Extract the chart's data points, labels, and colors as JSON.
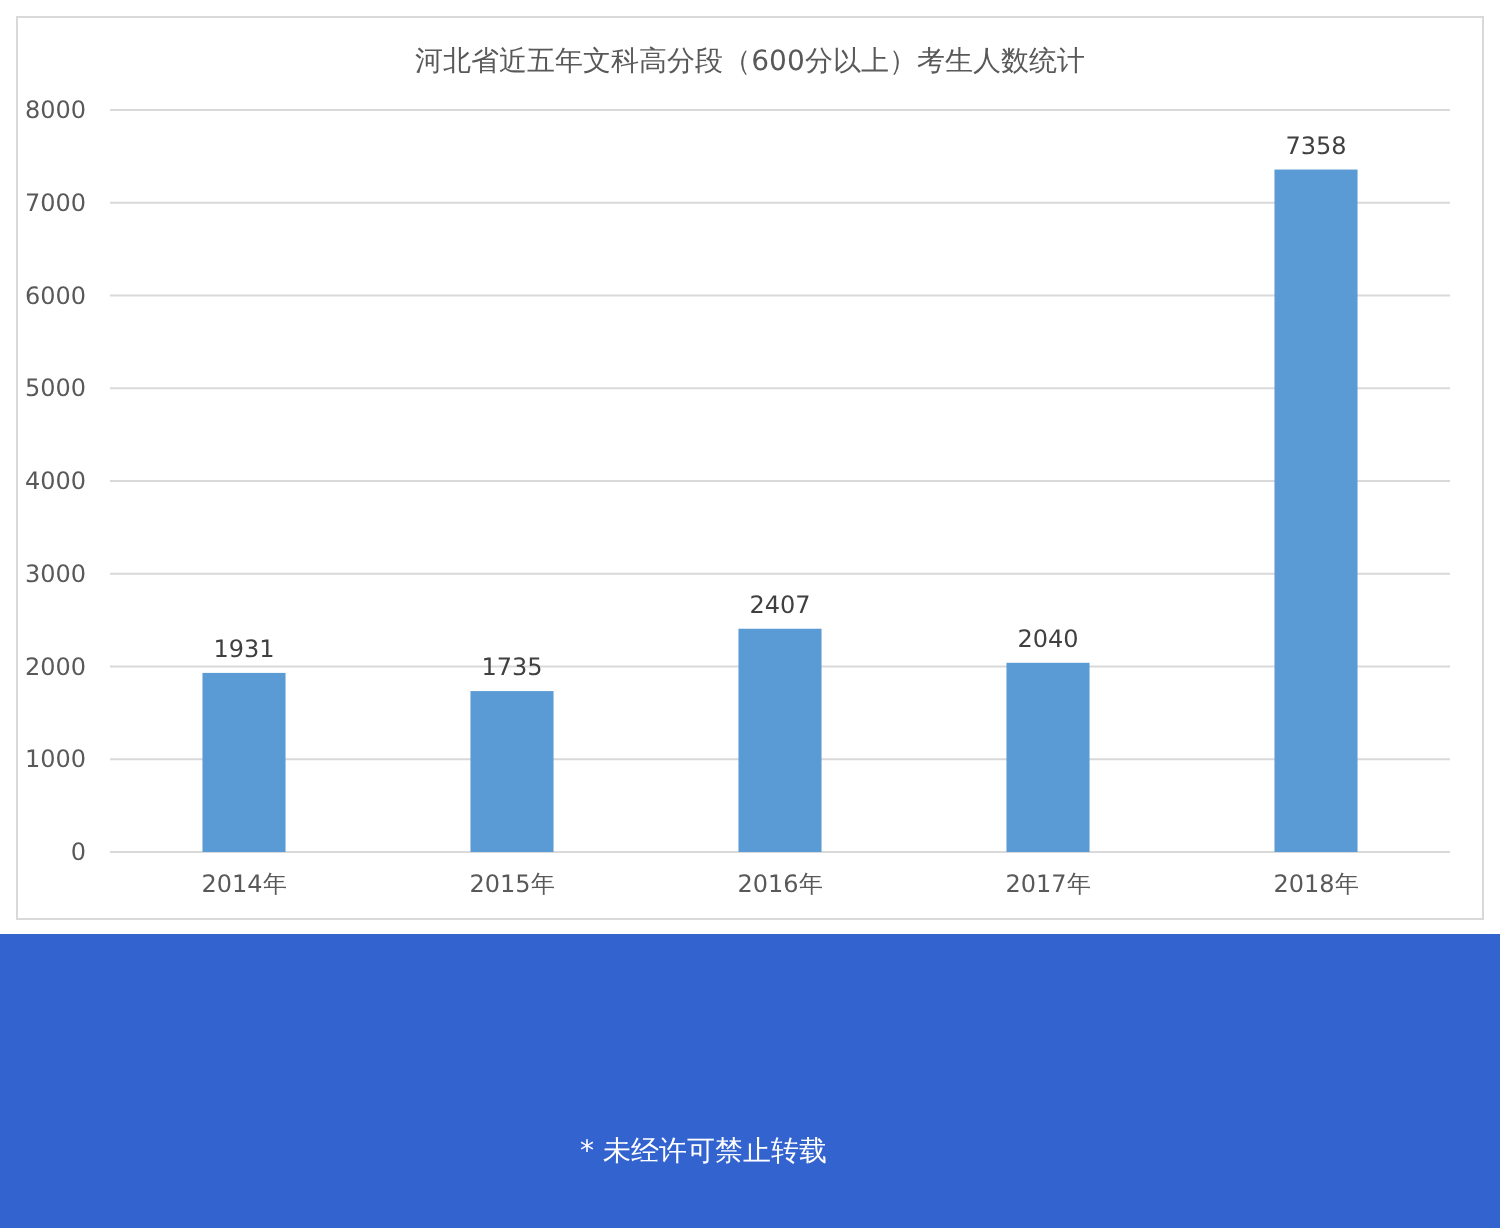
{
  "chart_data": {
    "type": "bar",
    "title": "河北省近五年文科高分段（600分以上）考生人数统计",
    "categories": [
      "2014年",
      "2015年",
      "2016年",
      "2017年",
      "2018年"
    ],
    "values": [
      1931,
      1735,
      2407,
      2040,
      7358
    ],
    "color": "#5b9bd5",
    "ylim": [
      0,
      8000
    ],
    "yticks": [
      0,
      1000,
      2000,
      3000,
      4000,
      5000,
      6000,
      7000,
      8000
    ],
    "grid": "y",
    "data_labels": true,
    "annotations": [
      "* 未经许可禁止转载"
    ]
  }
}
